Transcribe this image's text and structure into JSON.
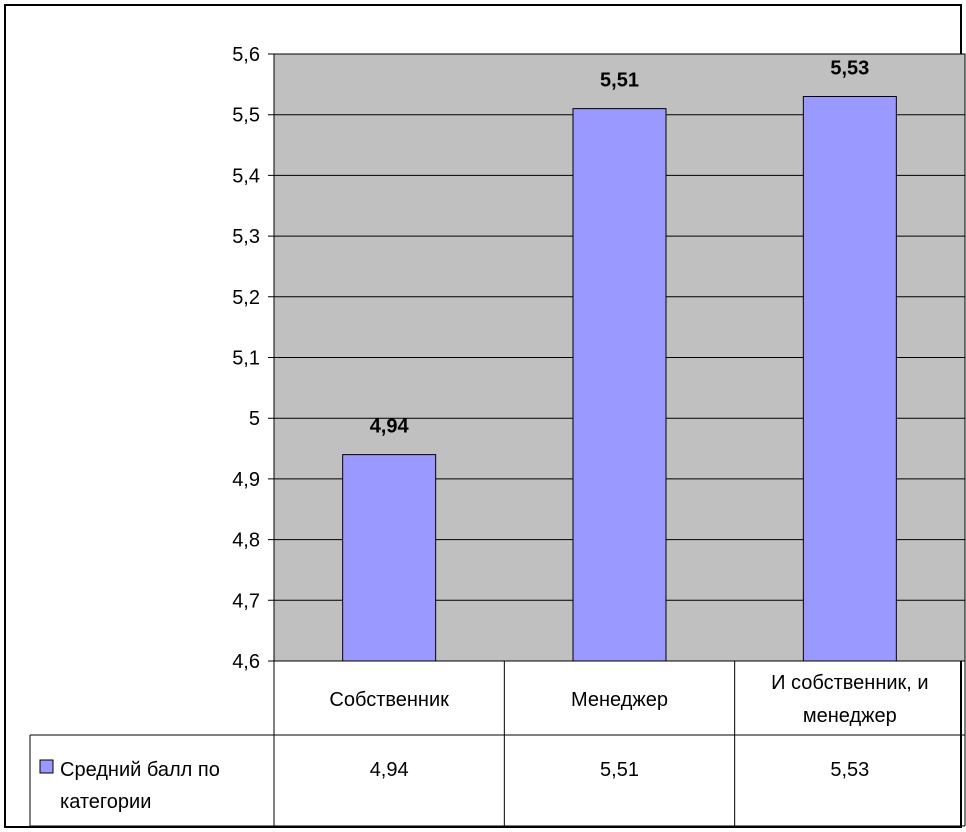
{
  "chart_data": {
    "type": "bar",
    "categories": [
      "Собственник",
      "Менеджер",
      "И собственник, и менеджер"
    ],
    "category_lines": [
      [
        "Собственник"
      ],
      [
        "Менеджер"
      ],
      [
        "И собственник, и",
        "менеджер"
      ]
    ],
    "series": [
      {
        "name": "Средний балл по категории",
        "name_lines": [
          "Средний балл по",
          "категории"
        ],
        "values": [
          4.94,
          5.51,
          5.53
        ],
        "data_labels": [
          "4,94",
          "5,51",
          "5,53"
        ],
        "table_values": [
          "4,94",
          "5,51",
          "5,53"
        ]
      }
    ],
    "y_ticks": [
      "4,6",
      "4,7",
      "4,8",
      "4,9",
      "5",
      "5,1",
      "5,2",
      "5,3",
      "5,4",
      "5,5",
      "5,6"
    ],
    "ylim": [
      4.6,
      5.6
    ],
    "grid": true,
    "data_table": true,
    "colors": {
      "bar_fill": "#9999ff",
      "plot_background": "#c0c0c0",
      "grid": "#000000",
      "border": "#000000"
    }
  }
}
